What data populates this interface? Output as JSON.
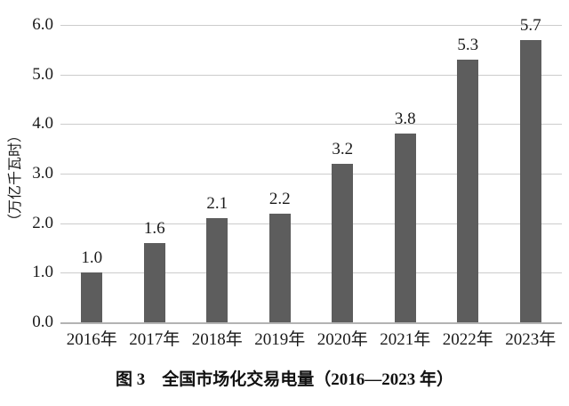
{
  "figure": {
    "caption": "图 3　全国市场化交易电量（2016—2023 年）"
  },
  "chart_data": {
    "type": "bar",
    "title": "图 3　全国市场化交易电量（2016—2023 年）",
    "categories": [
      "2016年",
      "2017年",
      "2018年",
      "2019年",
      "2020年",
      "2021年",
      "2022年",
      "2023年"
    ],
    "values": [
      1.0,
      1.6,
      2.1,
      2.2,
      3.2,
      3.8,
      5.3,
      5.7
    ],
    "value_labels": [
      "1.0",
      "1.6",
      "2.1",
      "2.2",
      "3.2",
      "3.8",
      "5.3",
      "5.7"
    ],
    "xlabel": "",
    "ylabel": "（万亿千瓦时）",
    "ylim": [
      0.0,
      6.0
    ],
    "ytick_labels": [
      "6.0",
      "5.0",
      "4.0",
      "3.0",
      "2.0",
      "1.0",
      "0.0"
    ],
    "ytick_values": [
      6.0,
      5.0,
      4.0,
      3.0,
      2.0,
      1.0,
      0.0
    ],
    "grid": true,
    "legend": false,
    "colors": {
      "bar": "#5d5d5d",
      "gridline": "#cccccc",
      "axis_line": "#b3b3b3",
      "text": "#1a1a1a",
      "background": "#ffffff"
    }
  }
}
